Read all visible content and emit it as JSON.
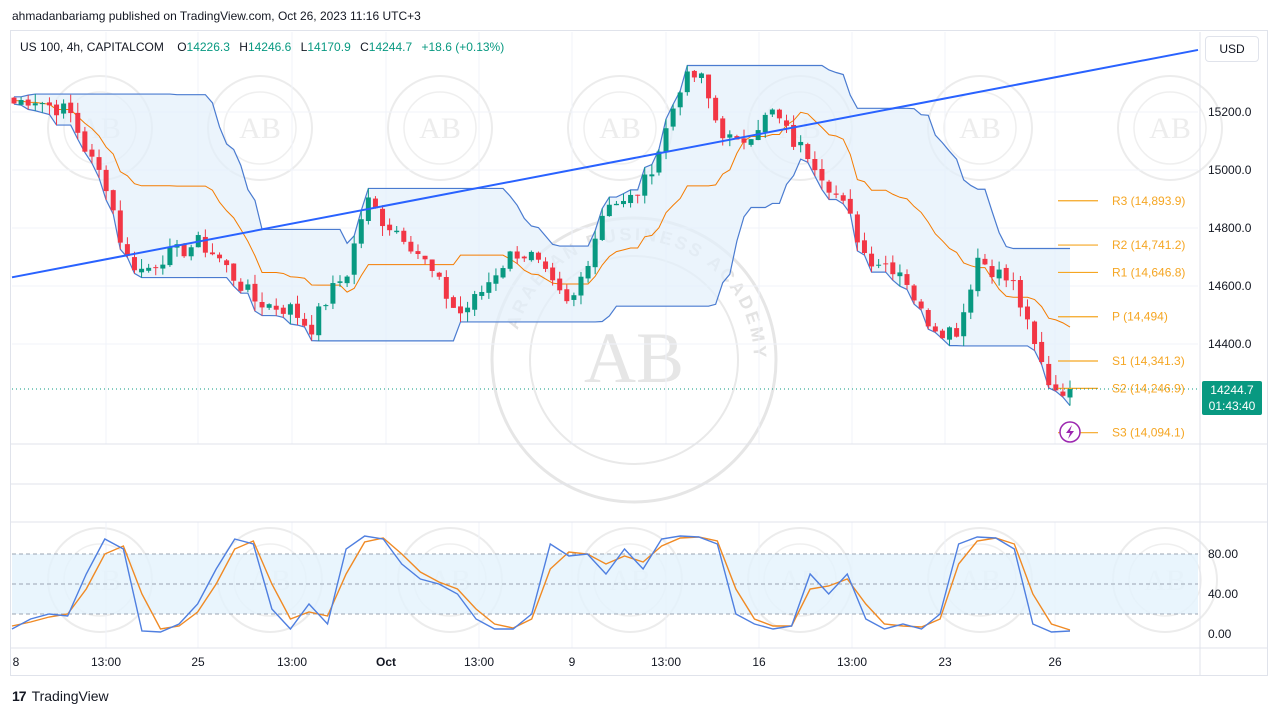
{
  "header": {
    "published_line": "ahmadanbariamg published on TradingView.com, Oct 26, 2023 11:16 UTC+3"
  },
  "legend": {
    "symbol": "US 100, 4h, CAPITALCOM",
    "o_label": "O",
    "o_value": "14226.3",
    "h_label": "H",
    "h_value": "14246.6",
    "l_label": "L",
    "l_value": "14170.9",
    "c_label": "C",
    "c_value": "14244.7",
    "change": "+18.6 (+0.13%)"
  },
  "currency": "USD",
  "price_tag": {
    "price": "14244.7",
    "countdown": "01:43:40"
  },
  "footer": {
    "brand": "TradingView"
  },
  "watermark_text": [
    "ARABIAN BUSINESS ACADEMY",
    "AB"
  ],
  "colors": {
    "up": "#089981",
    "down": "#f23645",
    "trendline": "#2962ff",
    "channel": "#4a7bd0",
    "median": "#f57c00",
    "pivot": "#f5a623",
    "stoch_k": "#4f7fe0",
    "stoch_d": "#f08a24"
  },
  "chart_data": [
    {
      "type": "candlestick",
      "price_axis": {
        "ticks": [
          "15200.0",
          "15000.0",
          "14800.0",
          "14600.0",
          "14400.0"
        ],
        "ylim": [
          14040,
          15620
        ]
      },
      "time_axis": [
        "8",
        "13:00",
        "25",
        "13:00",
        "Oct",
        "13:00",
        "9",
        "13:00",
        "16",
        "13:00",
        "23",
        "26"
      ],
      "pivot_levels": [
        {
          "label": "R3",
          "value_text": "(14,893.9)",
          "value": 14893.9
        },
        {
          "label": "R2",
          "value_text": "(14,741.2)",
          "value": 14741.2
        },
        {
          "label": "R1",
          "value_text": "(14,646.8)",
          "value": 14646.8
        },
        {
          "label": "P",
          "value_text": "(14,494)",
          "value": 14494
        },
        {
          "label": "S1",
          "value_text": "(14,341.3)",
          "value": 14341.3
        },
        {
          "label": "S2",
          "value_text": "(14,246.9)",
          "value": 14246.9
        },
        {
          "label": "S3",
          "value_text": "(14,094.1)",
          "value": 14094.1
        }
      ],
      "last_price": 14244.7,
      "close_path": [
        15230,
        15250,
        15220,
        15200,
        15050,
        14950,
        14700,
        14650,
        14700,
        14720,
        14750,
        14700,
        14620,
        14550,
        14530,
        14520,
        14450,
        14570,
        14650,
        14900,
        14820,
        14780,
        14700,
        14600,
        14500,
        14560,
        14650,
        14720,
        14700,
        14600,
        14520,
        14700,
        14900,
        14880,
        14950,
        15100,
        15300,
        15330,
        15150,
        15080,
        15150,
        15200,
        15100,
        15050,
        14950,
        14850,
        14700,
        14680,
        14650,
        14500,
        14450,
        14450,
        14700,
        14650,
        14600,
        14400,
        14250,
        14244.7
      ],
      "trendline": {
        "start": [
          0,
          14630
        ],
        "end": [
          57,
          15330
        ]
      }
    },
    {
      "type": "line",
      "name": "Stochastic",
      "yticks": [
        "80.00",
        "40.00",
        "0.00"
      ],
      "ylim": [
        0,
        100
      ],
      "band": [
        20,
        80
      ],
      "k": [
        5,
        15,
        20,
        18,
        60,
        95,
        85,
        3,
        2,
        10,
        30,
        65,
        95,
        90,
        25,
        5,
        30,
        10,
        85,
        98,
        95,
        70,
        55,
        50,
        40,
        15,
        5,
        5,
        20,
        90,
        78,
        80,
        60,
        85,
        65,
        95,
        98,
        97,
        90,
        20,
        10,
        5,
        8,
        60,
        40,
        60,
        15,
        5,
        10,
        5,
        20,
        90,
        97,
        96,
        85,
        10,
        2,
        3
      ],
      "d": [
        8,
        12,
        17,
        20,
        45,
        80,
        88,
        40,
        5,
        8,
        22,
        50,
        85,
        93,
        50,
        15,
        22,
        18,
        60,
        92,
        96,
        80,
        62,
        52,
        45,
        25,
        10,
        6,
        15,
        65,
        82,
        80,
        70,
        78,
        72,
        88,
        96,
        97,
        93,
        45,
        15,
        8,
        8,
        45,
        48,
        55,
        30,
        10,
        8,
        7,
        15,
        70,
        93,
        96,
        90,
        40,
        10,
        4
      ]
    }
  ]
}
